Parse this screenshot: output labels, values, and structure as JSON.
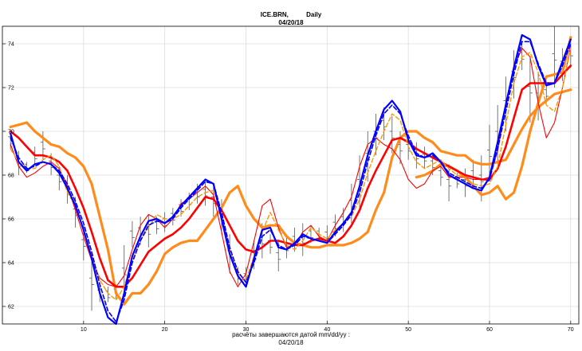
{
  "chart_data": {
    "type": "line",
    "title": "ICE.BRN,          Daily",
    "subtitle": "04/20/18",
    "footer_line1": "расчёты завершаются датой  mm/dd/yy :",
    "footer_line2": "04/20/18",
    "xlim": [
      0,
      71
    ],
    "ylim": [
      61.2,
      74.8
    ],
    "xticks": [
      10,
      20,
      30,
      40,
      50,
      60,
      70
    ],
    "yticks": [
      62,
      64,
      66,
      68,
      70,
      72,
      74
    ],
    "grid": true,
    "x": [
      1,
      2,
      3,
      4,
      5,
      6,
      7,
      8,
      9,
      10,
      11,
      12,
      13,
      14,
      15,
      16,
      17,
      18,
      19,
      20,
      21,
      22,
      23,
      24,
      25,
      26,
      27,
      28,
      29,
      30,
      31,
      32,
      33,
      34,
      35,
      36,
      37,
      38,
      39,
      40,
      41,
      42,
      43,
      44,
      45,
      46,
      47,
      48,
      49,
      50,
      51,
      52,
      53,
      54,
      55,
      56,
      57,
      58,
      59,
      60,
      61,
      62,
      63,
      64,
      65,
      66,
      67,
      68,
      69,
      70
    ],
    "series": [
      {
        "color": "#0000ff",
        "width": 2.2,
        "dash": "",
        "values": [
          69.9,
          68.6,
          68.2,
          68.5,
          68.6,
          68.5,
          68.1,
          67.4,
          66.6,
          65.5,
          64.2,
          62.6,
          61.5,
          61.2,
          62.6,
          64.3,
          65.2,
          65.9,
          66.0,
          65.8,
          66.1,
          66.6,
          67.0,
          67.4,
          67.8,
          67.6,
          66.0,
          64.4,
          63.4,
          62.9,
          64.2,
          65.5,
          65.6,
          64.7,
          64.6,
          64.9,
          65.3,
          65.1,
          65.0,
          64.9,
          65.4,
          65.8,
          66.3,
          67.5,
          68.9,
          70.0,
          71.0,
          71.4,
          70.9,
          69.6,
          68.9,
          68.8,
          69.0,
          68.6,
          68.0,
          67.8,
          67.6,
          67.4,
          67.3,
          67.9,
          69.5,
          71.2,
          72.9,
          74.4,
          74.2,
          73.0,
          72.1,
          72.2,
          73.2,
          74.2
        ]
      },
      {
        "color": "#0000ff",
        "width": 1.6,
        "dash": "5,3",
        "values": [
          69.7,
          68.8,
          68.3,
          68.4,
          68.6,
          68.5,
          68.2,
          67.6,
          66.8,
          65.8,
          64.5,
          63.0,
          61.8,
          61.3,
          62.3,
          64.0,
          65.0,
          65.7,
          65.9,
          65.8,
          66.0,
          66.5,
          66.9,
          67.3,
          67.7,
          67.6,
          66.3,
          64.7,
          63.6,
          63.1,
          64.0,
          65.2,
          65.5,
          64.8,
          64.6,
          64.8,
          65.2,
          65.1,
          65.0,
          64.9,
          65.3,
          65.7,
          66.2,
          67.2,
          68.6,
          69.8,
          70.8,
          71.2,
          70.8,
          69.8,
          69.0,
          68.8,
          68.9,
          68.6,
          68.1,
          67.9,
          67.7,
          67.5,
          67.4,
          67.8,
          69.2,
          70.9,
          72.6,
          74.1,
          74.1,
          73.1,
          72.2,
          72.2,
          73.0,
          74.0
        ]
      },
      {
        "color": "#ff9900",
        "width": 1.4,
        "dash": "5,3",
        "values": [
          69.2,
          68.6,
          68.3,
          68.3,
          68.7,
          68.9,
          68.4,
          67.2,
          66.6,
          65.5,
          64.3,
          63.2,
          62.6,
          62.3,
          62.9,
          64.1,
          65.0,
          65.6,
          66.2,
          66.0,
          66.0,
          66.2,
          66.6,
          67.0,
          67.2,
          67.3,
          66.3,
          64.6,
          63.5,
          63.2,
          64.3,
          65.4,
          66.3,
          65.5,
          64.8,
          64.6,
          65.0,
          65.6,
          65.3,
          65.1,
          65.5,
          65.8,
          66.1,
          66.9,
          68.1,
          69.1,
          70.0,
          70.8,
          70.5,
          69.3,
          68.6,
          68.3,
          68.5,
          68.7,
          68.3,
          68.0,
          67.9,
          67.6,
          67.5,
          67.6,
          68.4,
          70.3,
          72.2,
          73.4,
          73.6,
          72.7,
          71.2,
          70.9,
          72.0,
          73.8
        ]
      },
      {
        "color": "#ff0000",
        "width": 1.1,
        "dash": "",
        "values": [
          69.4,
          68.4,
          67.9,
          68.1,
          68.4,
          68.6,
          68.3,
          67.5,
          66.4,
          65.2,
          64.1,
          63.3,
          63.0,
          62.9,
          63.4,
          64.6,
          65.7,
          66.2,
          66.0,
          65.6,
          66.0,
          66.7,
          66.9,
          67.2,
          67.5,
          67.1,
          65.4,
          63.6,
          62.9,
          63.5,
          65.0,
          66.6,
          66.9,
          65.6,
          64.7,
          64.8,
          65.4,
          65.7,
          65.2,
          65.0,
          65.7,
          66.3,
          67.0,
          68.4,
          69.4,
          69.7,
          69.4,
          69.2,
          68.7,
          67.8,
          67.4,
          67.6,
          68.2,
          68.4,
          67.9,
          67.9,
          67.9,
          67.8,
          67.8,
          67.9,
          69.1,
          71.3,
          72.9,
          73.8,
          73.4,
          71.3,
          69.7,
          70.4,
          72.0,
          73.9
        ]
      },
      {
        "color": "#ff0000",
        "width": 2.6,
        "dash": "",
        "values": [
          70.0,
          69.7,
          69.3,
          68.9,
          68.9,
          68.8,
          68.6,
          68.2,
          67.4,
          66.5,
          65.4,
          64.2,
          63.2,
          62.9,
          62.9,
          63.3,
          63.9,
          64.5,
          64.8,
          65.1,
          65.3,
          65.6,
          66.0,
          66.5,
          67.0,
          66.9,
          66.4,
          65.7,
          65.0,
          64.6,
          64.5,
          64.7,
          65.0,
          65.0,
          64.9,
          64.8,
          64.8,
          65.0,
          65.1,
          65.0,
          64.9,
          65.2,
          65.7,
          66.4,
          67.4,
          68.2,
          68.9,
          69.6,
          69.7,
          69.5,
          69.2,
          69.0,
          68.8,
          68.6,
          68.4,
          68.2,
          68.0,
          67.9,
          67.8,
          67.8,
          68.3,
          69.3,
          70.6,
          71.9,
          72.2,
          72.2,
          72.2,
          72.2,
          72.6,
          73.0
        ]
      },
      {
        "color": "#ff8c1a",
        "width": 3.2,
        "dash": "",
        "values": [
          70.2,
          70.3,
          70.4,
          70.0,
          69.7,
          69.4,
          69.3,
          69.0,
          68.8,
          68.4,
          67.6,
          66.1,
          64.6,
          62.6,
          62.1,
          62.6,
          62.6,
          63.0,
          63.6,
          64.4,
          64.7,
          64.9,
          65.0,
          65.0,
          65.5,
          66.0,
          66.5,
          67.2,
          67.5,
          66.6,
          66.0,
          65.6,
          65.7,
          65.7,
          65.2,
          64.9,
          64.8,
          64.7,
          64.7,
          64.8,
          64.8,
          64.8,
          64.9,
          65.1,
          65.4,
          66.4,
          67.2,
          68.8,
          69.7,
          70.0,
          70.0,
          69.7,
          69.5,
          69.1,
          69.0,
          68.9,
          68.9,
          68.6,
          68.5,
          68.5,
          68.6,
          68.7,
          69.4,
          70.1,
          70.7,
          71.1,
          71.4,
          71.7,
          71.8,
          71.9
        ]
      },
      {
        "color": "#ff8c1a",
        "width": 3.2,
        "dash": "",
        "values": [
          null,
          null,
          null,
          null,
          null,
          null,
          null,
          null,
          null,
          null,
          null,
          null,
          null,
          null,
          null,
          null,
          null,
          null,
          null,
          null,
          null,
          null,
          null,
          null,
          null,
          null,
          null,
          null,
          null,
          null,
          null,
          null,
          null,
          null,
          null,
          null,
          null,
          null,
          null,
          null,
          null,
          null,
          null,
          null,
          null,
          null,
          null,
          null,
          null,
          null,
          67.9,
          68.0,
          68.2,
          68.5,
          68.4,
          68.2,
          67.9,
          67.5,
          67.1,
          67.2,
          67.5,
          66.9,
          67.2,
          68.4,
          70.0,
          71.3,
          72.5,
          72.6,
          72.7,
          74.3
        ]
      }
    ],
    "bars": [
      [
        1,
        70.0,
        69.2
      ],
      [
        2,
        69.1,
        68.0
      ],
      [
        3,
        68.6,
        68.1
      ],
      [
        4,
        69.3,
        68.5
      ],
      [
        5,
        70.0,
        68.7
      ],
      [
        6,
        69.0,
        68.0
      ],
      [
        7,
        68.4,
        67.3
      ],
      [
        8,
        68.0,
        66.7
      ],
      [
        9,
        67.0,
        65.6
      ],
      [
        10,
        65.7,
        64.1
      ],
      [
        11,
        64.5,
        61.8
      ],
      [
        12,
        63.0,
        62.2
      ],
      [
        13,
        62.9,
        62.2
      ],
      [
        14,
        63.0,
        62.3
      ],
      [
        15,
        64.8,
        62.4
      ],
      [
        16,
        65.9,
        64.7
      ],
      [
        17,
        66.1,
        64.8
      ],
      [
        18,
        66.2,
        64.7
      ],
      [
        19,
        66.1,
        65.3
      ],
      [
        20,
        66.3,
        65.4
      ],
      [
        21,
        66.5,
        65.7
      ],
      [
        22,
        66.9,
        66.1
      ],
      [
        23,
        67.2,
        66.4
      ],
      [
        24,
        67.6,
        66.7
      ],
      [
        25,
        67.8,
        66.6
      ],
      [
        26,
        67.6,
        66.1
      ],
      [
        27,
        66.9,
        65.3
      ],
      [
        28,
        65.3,
        63.5
      ],
      [
        29,
        63.8,
        63.0
      ],
      [
        30,
        63.8,
        62.9
      ],
      [
        31,
        64.9,
        63.7
      ],
      [
        32,
        65.8,
        64.2
      ],
      [
        33,
        65.3,
        64.4
      ],
      [
        34,
        65.0,
        63.6
      ],
      [
        35,
        65.2,
        64.2
      ],
      [
        36,
        65.6,
        64.5
      ],
      [
        37,
        65.8,
        64.3
      ],
      [
        38,
        65.7,
        64.9
      ],
      [
        39,
        65.6,
        65.0
      ],
      [
        40,
        65.7,
        64.8
      ],
      [
        41,
        66.2,
        65.2
      ],
      [
        42,
        66.5,
        65.4
      ],
      [
        43,
        67.6,
        65.8
      ],
      [
        44,
        68.9,
        66.4
      ],
      [
        45,
        70.0,
        67.7
      ],
      [
        46,
        70.8,
        68.9
      ],
      [
        47,
        71.1,
        69.6
      ],
      [
        48,
        70.7,
        69.0
      ],
      [
        49,
        70.0,
        68.5
      ],
      [
        50,
        69.8,
        68.7
      ],
      [
        51,
        69.5,
        68.3
      ],
      [
        52,
        69.3,
        68.3
      ],
      [
        53,
        69.0,
        68.0
      ],
      [
        54,
        68.6,
        67.5
      ],
      [
        55,
        68.5,
        66.8
      ],
      [
        56,
        68.1,
        67.4
      ],
      [
        57,
        68.3,
        67.0
      ],
      [
        58,
        68.7,
        67.4
      ],
      [
        59,
        68.9,
        66.8
      ],
      [
        60,
        70.3,
        67.7
      ],
      [
        61,
        71.2,
        68.5
      ],
      [
        62,
        72.5,
        70.0
      ],
      [
        63,
        73.7,
        71.5
      ],
      [
        64,
        74.1,
        72.8
      ],
      [
        65,
        73.4,
        70.4
      ],
      [
        66,
        72.7,
        70.5
      ],
      [
        67,
        72.2,
        71.3
      ],
      [
        68,
        74.8,
        72.0
      ],
      [
        69,
        73.8,
        72.3
      ],
      [
        70,
        74.3,
        72.9
      ]
    ]
  }
}
